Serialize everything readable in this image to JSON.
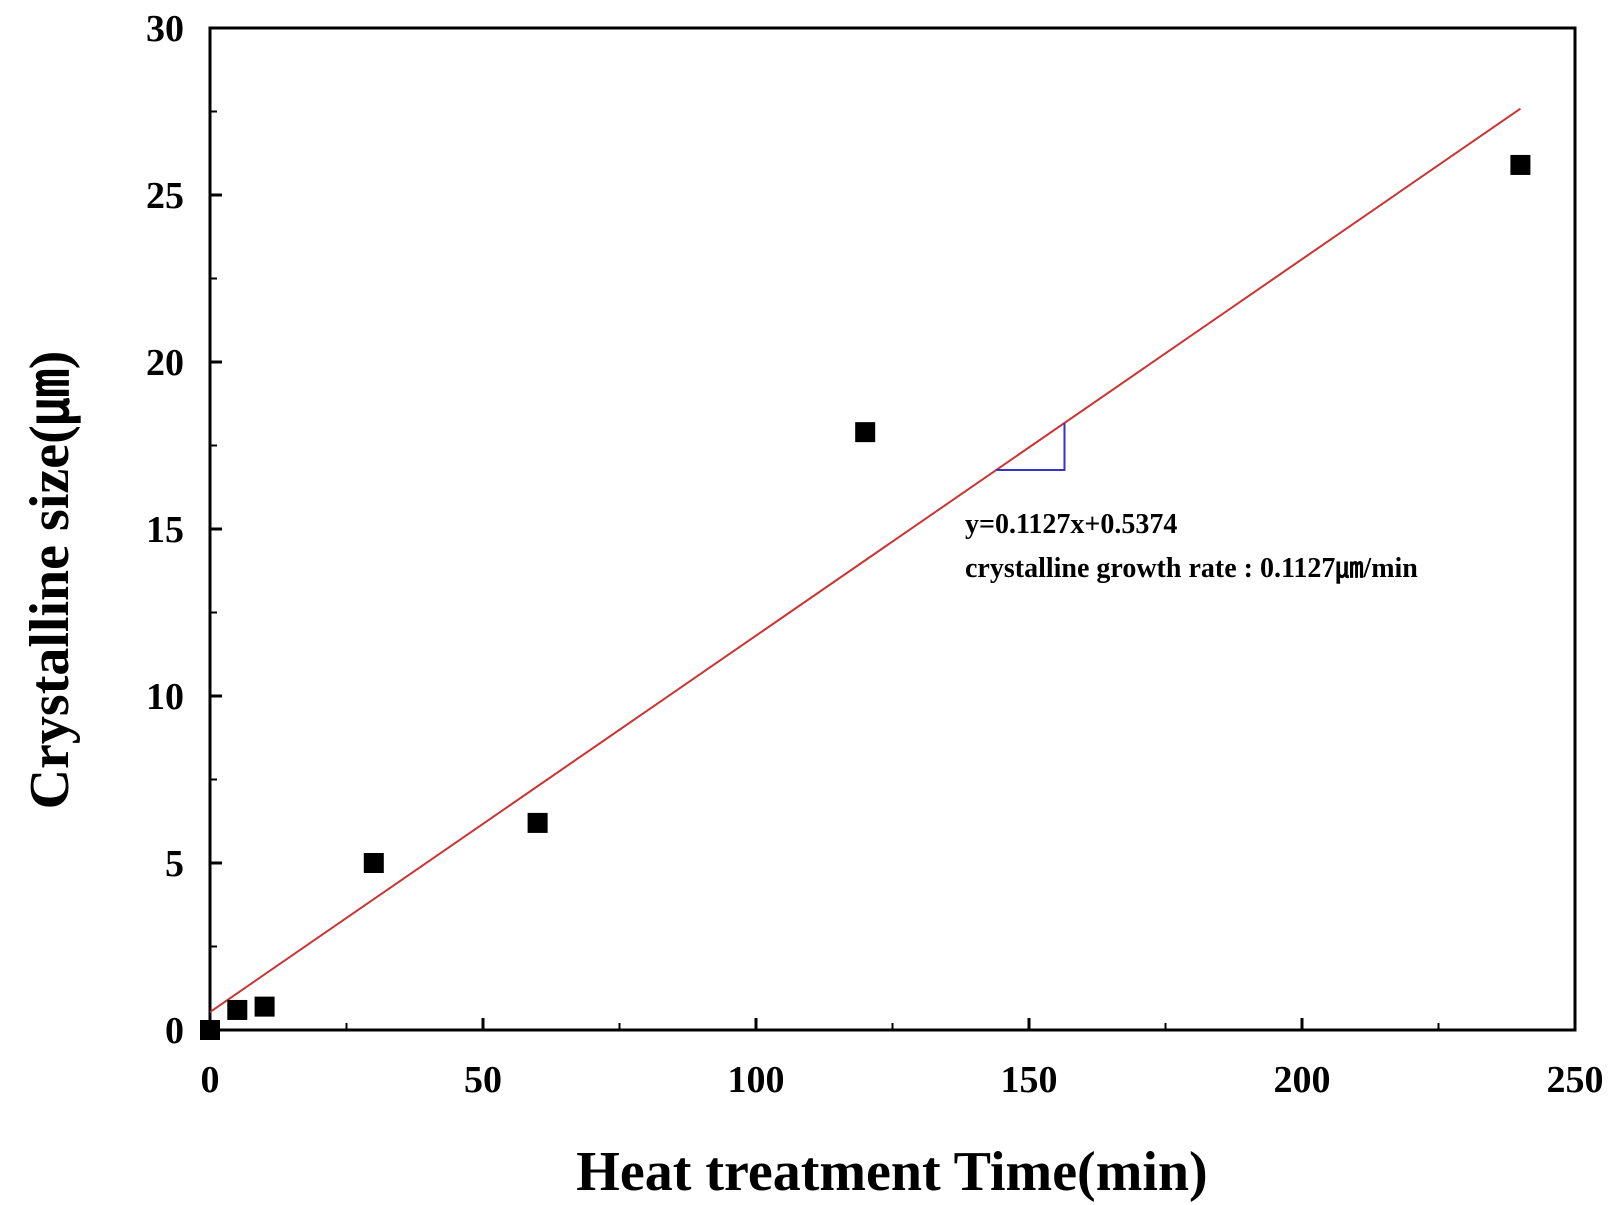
{
  "chart_data": {
    "type": "scatter",
    "xlabel": "Heat treatment Time(min)",
    "ylabel": "Crystalline size(㎛)",
    "xlim": [
      0,
      250
    ],
    "ylim": [
      0,
      30
    ],
    "x_ticks": [
      "0",
      "50",
      "100",
      "150",
      "200",
      "250"
    ],
    "y_ticks": [
      "0",
      "5",
      "10",
      "15",
      "20",
      "25",
      "30"
    ],
    "grid": false,
    "series": [
      {
        "x": [
          0,
          5,
          10,
          30,
          60,
          120,
          240
        ],
        "y": [
          0,
          0.6,
          0.7,
          5.0,
          6.2,
          17.9,
          25.9
        ],
        "color": "#000000",
        "marker": "square"
      }
    ],
    "fit_line": {
      "slope": 0.1127,
      "intercept": 0.5374,
      "x_range": [
        0,
        240
      ],
      "color": "#cc3333"
    },
    "slope_marker": {
      "x_range": [
        144,
        156.5
      ],
      "color": "#3333cc"
    },
    "annotations": [
      "y=0.1127x+0.5374",
      "crystalline growth rate : 0.1127㎛/min"
    ]
  }
}
